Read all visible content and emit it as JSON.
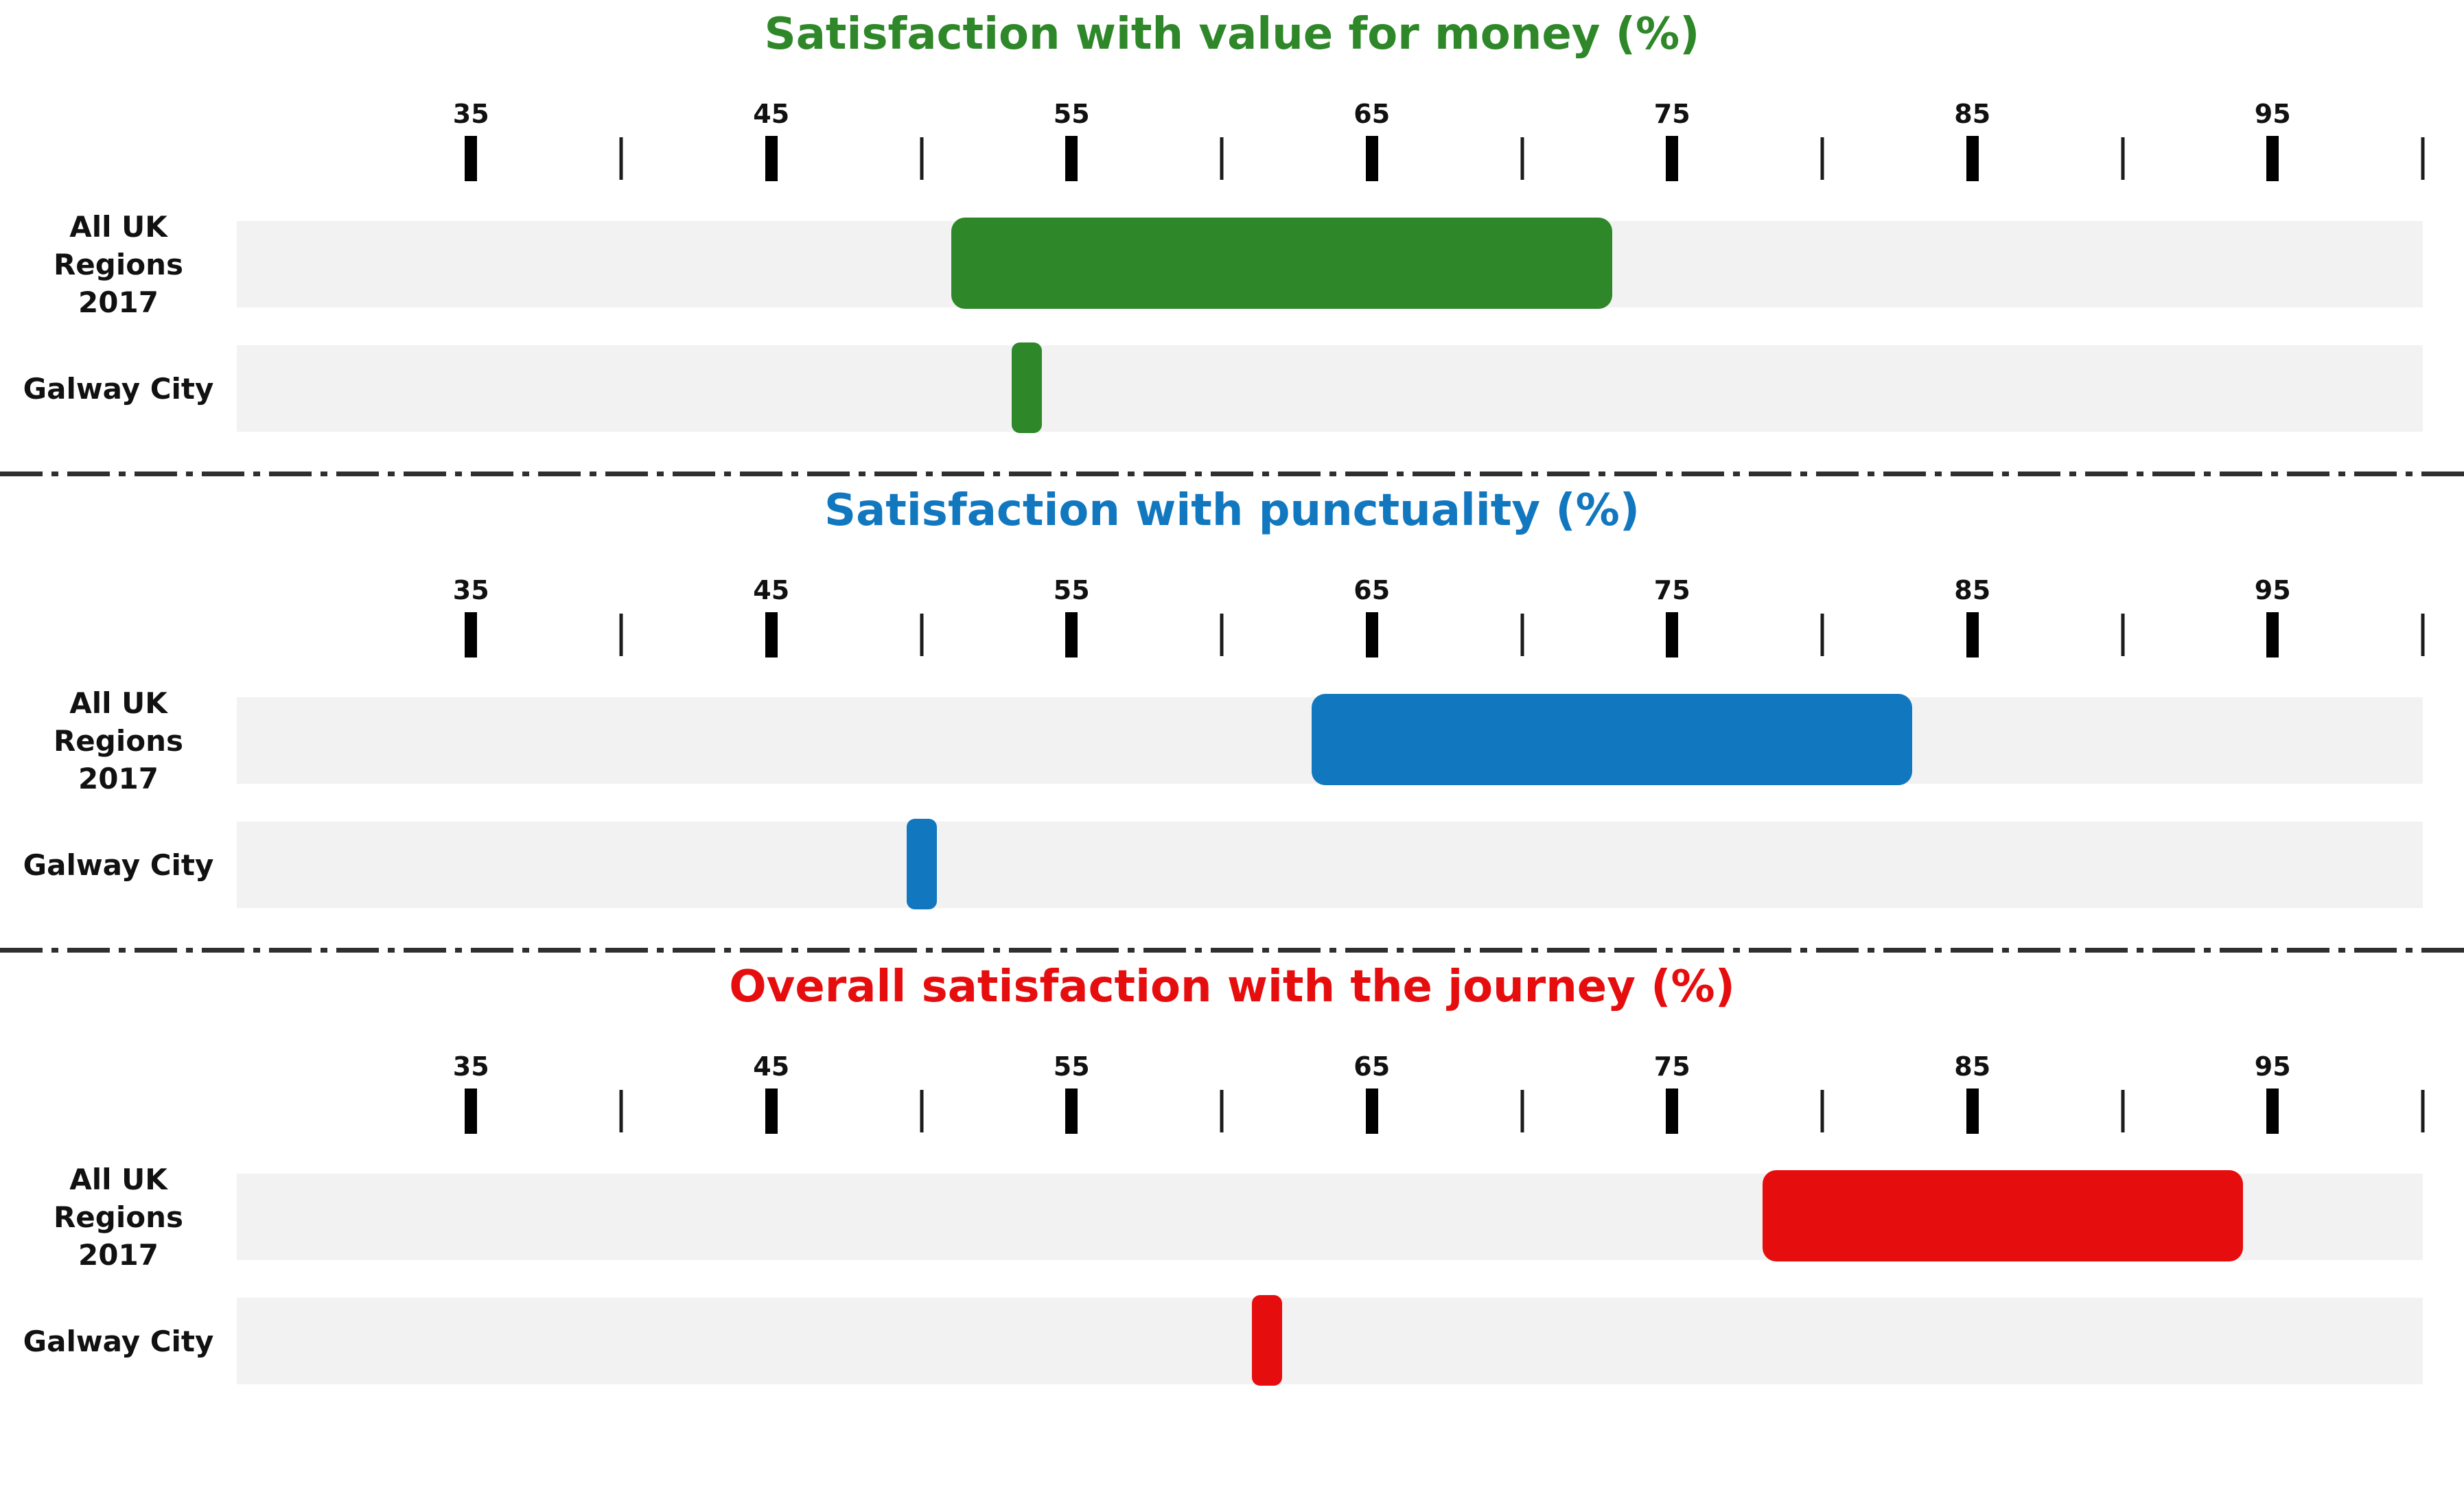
{
  "page": {
    "background": "#ffffff",
    "track_color": "#f2f2f2",
    "tick_color": "#000000",
    "label_color": "#111111",
    "separator_color": "#2f2f2f"
  },
  "chart_data": [
    {
      "type": "range_bar",
      "title": "Satisfaction with value for money (%)",
      "color": "#2e8728",
      "axis": {
        "min": 27.2,
        "max": 100,
        "unit": "%",
        "major_ticks": [
          35,
          45,
          55,
          65,
          75,
          85,
          95
        ],
        "minor_ticks": [
          40,
          50,
          60,
          70,
          80,
          90,
          100
        ]
      },
      "rows": [
        {
          "label_lines": [
            "All UK Regions",
            "2017"
          ],
          "kind": "range",
          "from": 51,
          "to": 73
        },
        {
          "label_lines": [
            "Galway City"
          ],
          "kind": "marker",
          "value": 53.5
        }
      ]
    },
    {
      "type": "range_bar",
      "title": "Satisfaction with punctuality (%)",
      "color": "#1177be",
      "axis": {
        "min": 27.2,
        "max": 100,
        "unit": "%",
        "major_ticks": [
          35,
          45,
          55,
          65,
          75,
          85,
          95
        ],
        "minor_ticks": [
          40,
          50,
          60,
          70,
          80,
          90,
          100
        ]
      },
      "rows": [
        {
          "label_lines": [
            "All UK Regions",
            "2017"
          ],
          "kind": "range",
          "from": 63,
          "to": 83
        },
        {
          "label_lines": [
            "Galway City"
          ],
          "kind": "marker",
          "value": 50
        }
      ]
    },
    {
      "type": "range_bar",
      "title": "Overall satisfaction with the journey (%)",
      "color": "#e60d0e",
      "axis": {
        "min": 27.2,
        "max": 100,
        "unit": "%",
        "major_ticks": [
          35,
          45,
          55,
          65,
          75,
          85,
          95
        ],
        "minor_ticks": [
          40,
          50,
          60,
          70,
          80,
          90,
          100
        ]
      },
      "rows": [
        {
          "label_lines": [
            "All UK Regions",
            "2017"
          ],
          "kind": "range",
          "from": 78,
          "to": 94
        },
        {
          "label_lines": [
            "Galway City"
          ],
          "kind": "marker",
          "value": 61.5
        }
      ]
    }
  ]
}
